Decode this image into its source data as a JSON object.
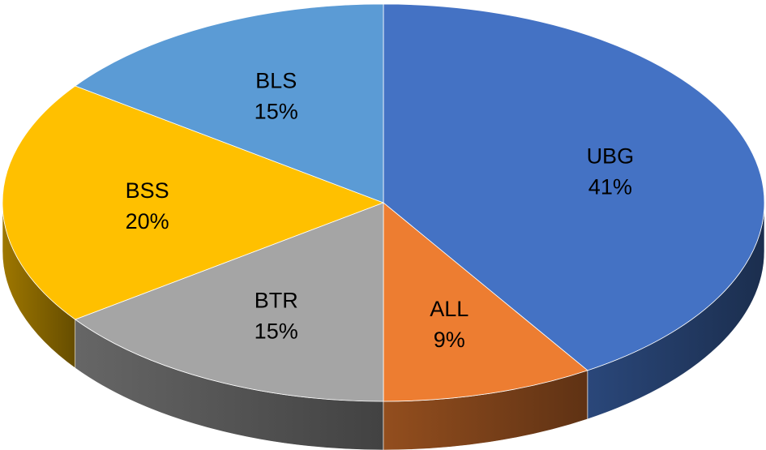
{
  "chart_data": {
    "type": "pie",
    "style": "3d",
    "title": "",
    "slices": [
      {
        "label": "UBG",
        "value": 41,
        "display": "41%",
        "color": "#4472C4"
      },
      {
        "label": "ALL",
        "value": 9,
        "display": "9%",
        "color": "#ED7D31"
      },
      {
        "label": "BTR",
        "value": 15,
        "display": "15%",
        "color": "#A5A5A5"
      },
      {
        "label": "BSS",
        "value": 20,
        "display": "20%",
        "color": "#FFC000"
      },
      {
        "label": "BLS",
        "value": 15,
        "display": "15%",
        "color": "#5B9BD5"
      }
    ],
    "legend": "none"
  }
}
